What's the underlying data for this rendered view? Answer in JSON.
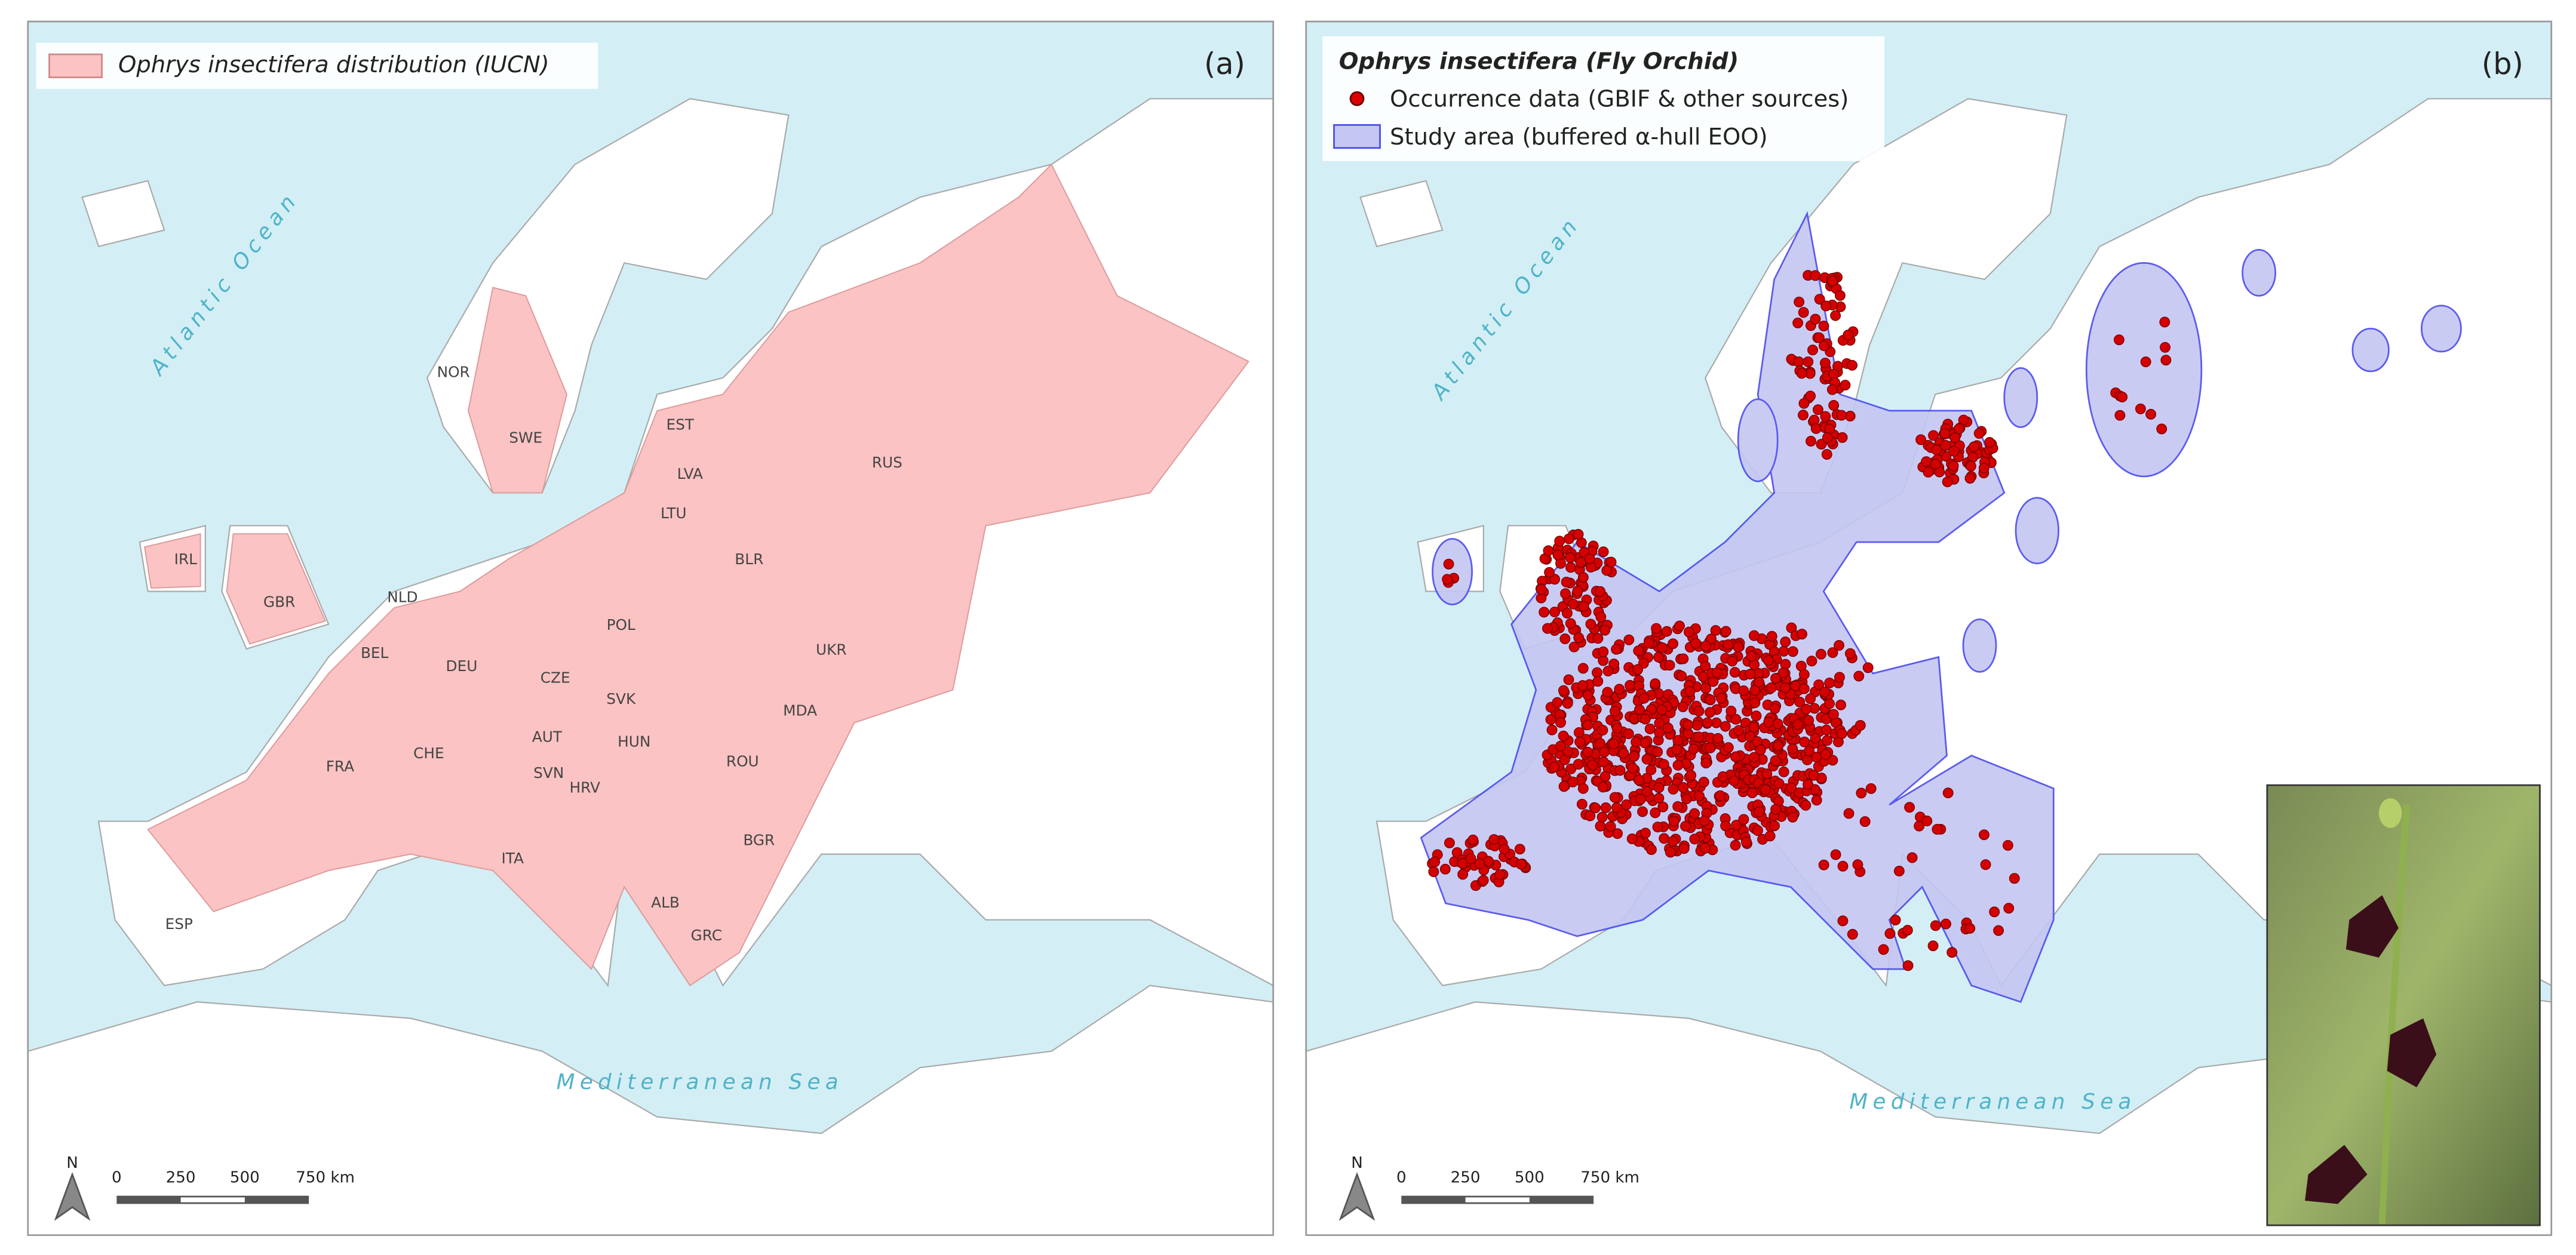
{
  "panels": [
    {
      "panel_label": "(a)",
      "legend": [
        "Ophrys insectifera distribution (IUCN)"
      ],
      "country_labels": [
        "NOR",
        "SWE",
        "EST",
        "LVA",
        "LTU",
        "RUS",
        "BLR",
        "IRL",
        "GBR",
        "NLD",
        "BEL",
        "DEU",
        "POL",
        "CZE",
        "SVK",
        "UKR",
        "AUT",
        "CHE",
        "FRA",
        "HUN",
        "ROU",
        "MDA",
        "SVN",
        "HRV",
        "BGR",
        "ITA",
        "ALB",
        "GRC",
        "ESP"
      ],
      "sea_labels": [
        "Atlantic Ocean",
        "Mediterranean Sea"
      ],
      "north": "N",
      "scale_bar": [
        "0",
        "250",
        "500",
        "750 km"
      ]
    },
    {
      "panel_label": "(b)",
      "legend_title": "Ophrys insectifera (Fly Orchid)",
      "legend": [
        "Occurrence data (GBIF & other sources)",
        "Study area (buffered α-hull EOO)"
      ],
      "sea_labels": [
        "Atlantic Ocean",
        "Mediterranean Sea"
      ],
      "north": "N",
      "scale_bar": [
        "0",
        "250",
        "500",
        "750 km"
      ]
    }
  ]
}
